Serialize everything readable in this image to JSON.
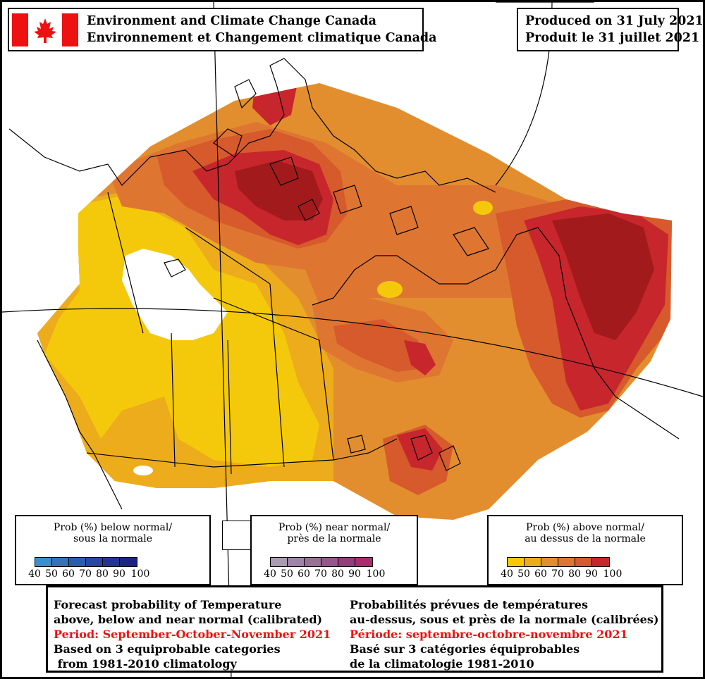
{
  "header": {
    "agency_en": "Environment and Climate Change Canada",
    "agency_fr": "Environnement et Changement climatique Canada",
    "produced_en": "Produced on 31 July 2021",
    "produced_fr": "Produit le 31 juillet 2021"
  },
  "icons": {
    "flag": "canada-flag-icon"
  },
  "colors": {
    "flag_red": "#ee1111",
    "below": [
      "#3d8ec9",
      "#3572bb",
      "#2f5ab2",
      "#2a45a5",
      "#243495",
      "#1b2580",
      "#0c1a6a"
    ],
    "near": [
      "#a89bb2",
      "#9e84a8",
      "#987097",
      "#94588c",
      "#8e3f7c",
      "#ad2a70",
      "#c81f6e"
    ],
    "above": [
      "#f5c90b",
      "#ecac1c",
      "#e38e2e",
      "#de7632",
      "#d65a2c",
      "#c8262d",
      "#a31a1d"
    ],
    "land_none": "#ffffff",
    "water": "#ffffff"
  },
  "legends": {
    "below": {
      "title_line1": "Prob (%) below normal/",
      "title_line2": "sous la normale",
      "ticks": [
        "40",
        "50",
        "60",
        "70",
        "80",
        "90",
        "100"
      ]
    },
    "near": {
      "title_line1": "Prob (%) near normal/",
      "title_line2": "près de la normale",
      "ticks": [
        "40",
        "50",
        "60",
        "70",
        "80",
        "90",
        "100"
      ]
    },
    "above": {
      "title_line1": "Prob (%) above normal/",
      "title_line2": "au dessus de la normale",
      "ticks": [
        "40",
        "50",
        "60",
        "70",
        "80",
        "90",
        "100"
      ]
    }
  },
  "info": {
    "en": {
      "line1": "Forecast probability of Temperature",
      "line2": "above, below and near normal (calibrated)",
      "period": "Period: September-October-November 2021",
      "line4": "Based on 3 equiprobable categories",
      "line5": " from 1981-2010 climatology"
    },
    "fr": {
      "line1": "Probabilités prévues de températures",
      "line2": "au-dessus, sous et près de la normale (calibrées)",
      "period": "Période: septembre-octobre-novembre 2021",
      "line4": "Basé sur 3 catégories équiprobables",
      "line5": "de la climatologie 1981-2010"
    }
  }
}
